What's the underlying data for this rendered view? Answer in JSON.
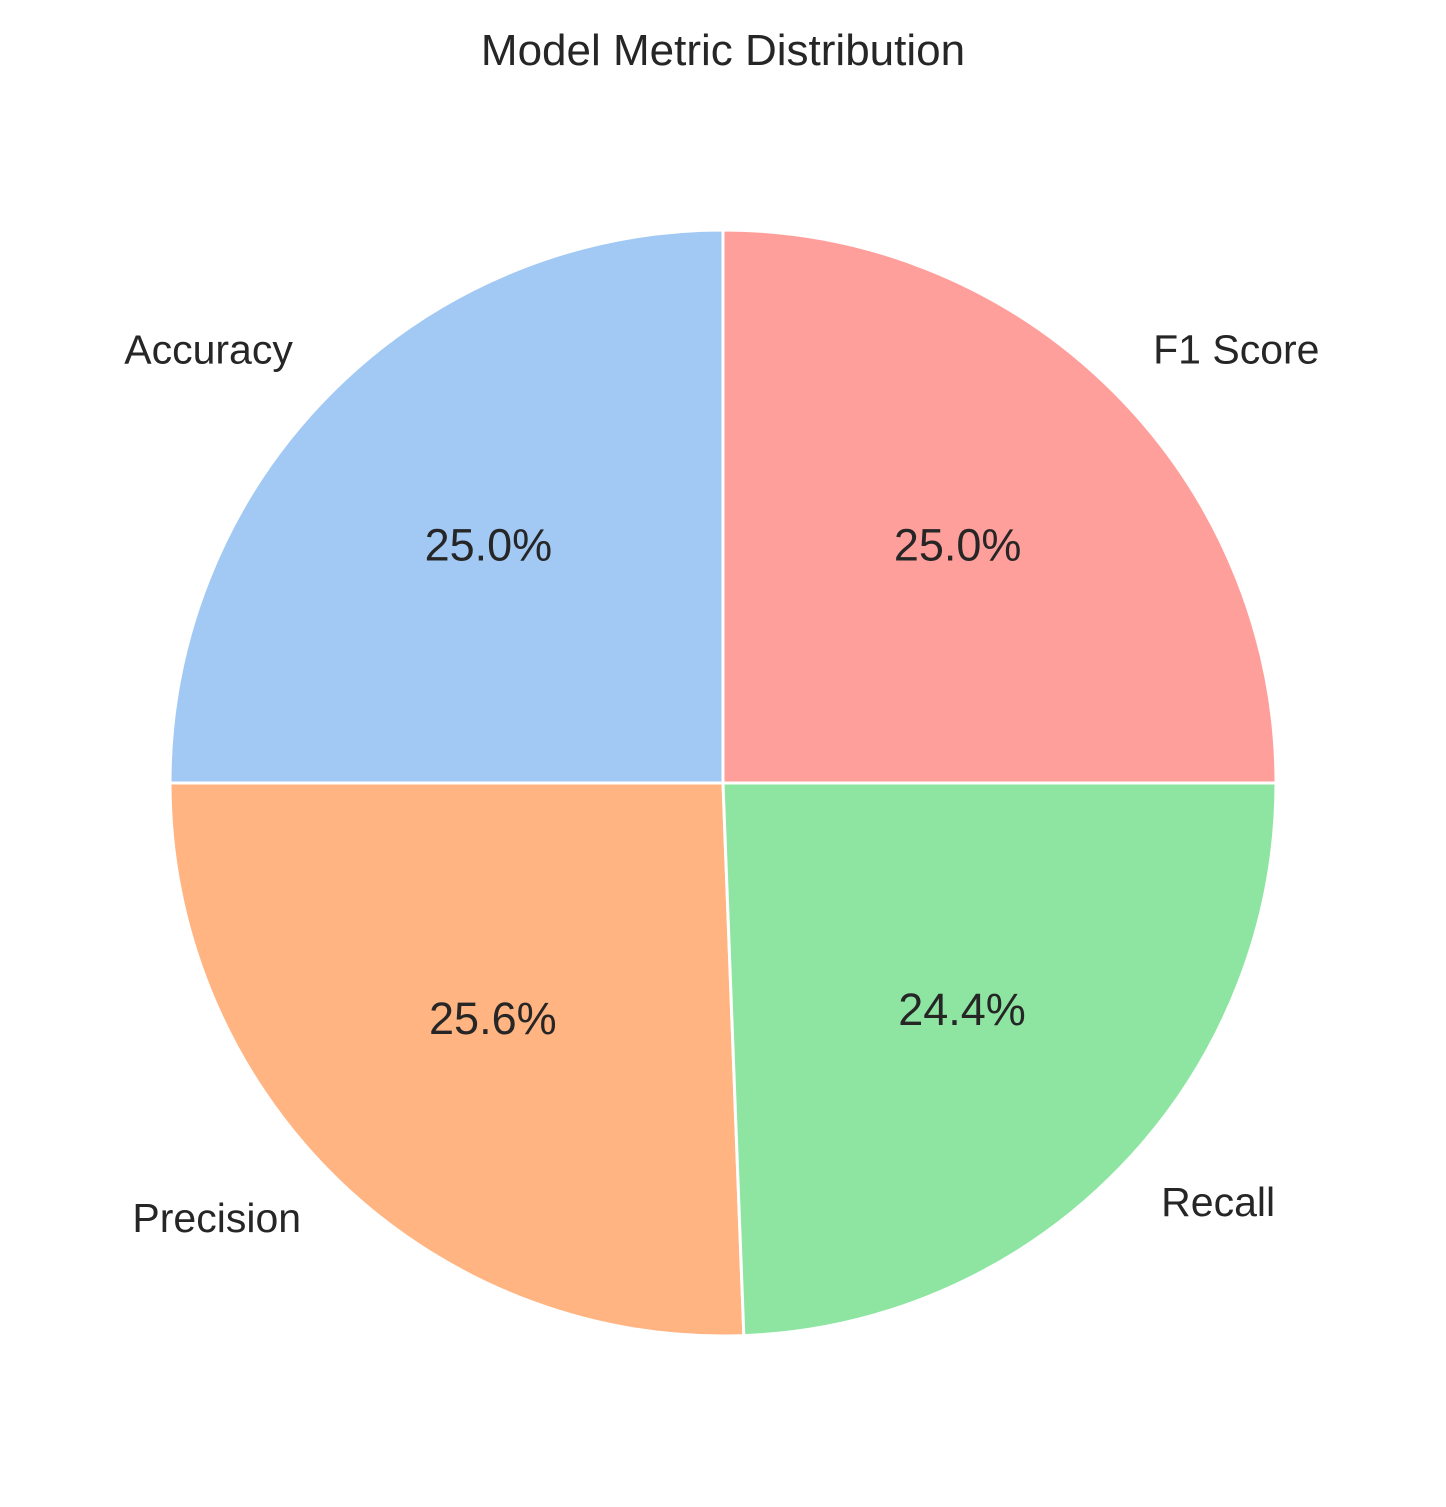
{
  "chart_data": {
    "type": "pie",
    "title": "Model Metric Distribution",
    "start_angle_deg": 90,
    "direction": "counterclockwise",
    "slices": [
      {
        "label": "Accuracy",
        "percent": 25.0,
        "pct_text": "25.0%",
        "color": "#a1c9f4"
      },
      {
        "label": "Precision",
        "percent": 25.6,
        "pct_text": "25.6%",
        "color": "#ffb482"
      },
      {
        "label": "Recall",
        "percent": 24.4,
        "pct_text": "24.4%",
        "color": "#8de5a1"
      },
      {
        "label": "F1 Score",
        "percent": 25.0,
        "pct_text": "25.0%",
        "color": "#ff9f9b"
      }
    ]
  }
}
